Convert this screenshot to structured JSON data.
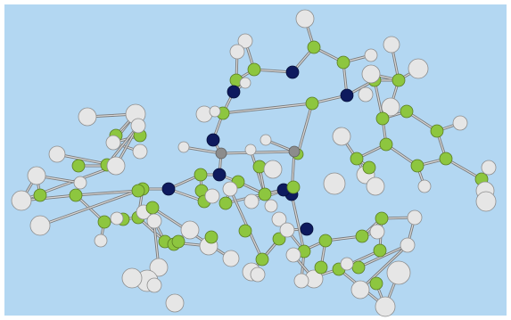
{
  "viewer": {
    "background_color": "#b3d7f2",
    "frame_color": "#ffffff",
    "bond_color": "#888888",
    "atom_types": {
      "carbon": {
        "color": "#8dc63f",
        "outline": "#5a7d24"
      },
      "hydrogen": {
        "color": "#e6e6e6",
        "outline": "#8e8e8e"
      },
      "nitrogen": {
        "color": "#0e1a5e",
        "outline": "#06103b"
      },
      "metal": {
        "color": "#8c8c8c",
        "outline": "#5e5e5e"
      }
    }
  }
}
